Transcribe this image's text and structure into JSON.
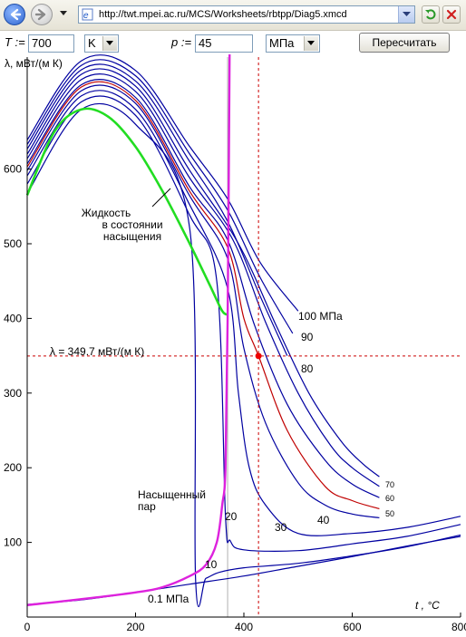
{
  "browser": {
    "url": "http://twt.mpei.ac.ru/MCS/Worksheets/rbtpp/Diag5.xmcd"
  },
  "form": {
    "t_label": "T :=",
    "t_value": "700",
    "t_unit": "K",
    "p_label": "p :=",
    "p_value": "45",
    "p_unit": "МПа",
    "recalc_label": "Пересчитать"
  },
  "chart_data": {
    "type": "line",
    "ylabel": "λ, мВт/(м К)",
    "xlabel": "t , °C",
    "xlim": [
      0,
      800
    ],
    "ylim": [
      0,
      750
    ],
    "x_ticks": [
      0,
      200,
      400,
      600,
      800
    ],
    "y_ticks": [
      100,
      200,
      300,
      400,
      500,
      600
    ],
    "grid": false,
    "colors": {
      "isobar": "#0000a0",
      "selected_isobar": "#c00000",
      "saturated_liquid": "#22dd22",
      "saturated_vapor": "#dd22dd",
      "marker": "#ee0000",
      "crosshair": "#cc0000"
    },
    "result_label": "λ = 349.7 мВт/(м К)",
    "result_point": {
      "t": 427,
      "lambda": 349.7
    },
    "saturation_temperature_line": 370,
    "annotations": {
      "liquid": [
        "Жидкость",
        "в состоянии",
        "насыщения"
      ],
      "vapor": [
        "Насыщенный",
        "пар"
      ]
    },
    "series": [
      {
        "name": "0.1 МПа",
        "x": [
          0,
          100,
          200,
          300,
          400,
          500,
          600,
          700,
          800
        ],
        "y": [
          17,
          23,
          33,
          44,
          55,
          68,
          81,
          95,
          108
        ]
      },
      {
        "name": "10",
        "x": [
          0,
          100,
          200,
          300,
          311,
          330,
          355,
          400,
          500,
          600,
          700,
          800
        ],
        "y": [
          567,
          680,
          660,
          520,
          48,
          52,
          60,
          66,
          72,
          82,
          94,
          110
        ]
      },
      {
        "name": "20",
        "x": [
          0,
          100,
          200,
          300,
          350,
          366,
          375,
          400,
          500,
          600,
          700,
          800
        ],
        "y": [
          580,
          690,
          672,
          538,
          450,
          135,
          102,
          90,
          89,
          98,
          108,
          124
        ]
      },
      {
        "name": "30",
        "x": [
          0,
          100,
          200,
          300,
          370,
          390,
          410,
          440,
          500,
          600,
          700,
          800
        ],
        "y": [
          591,
          698,
          680,
          552,
          440,
          300,
          200,
          150,
          112,
          112,
          120,
          135
        ]
      },
      {
        "name": "40",
        "x": [
          0,
          100,
          200,
          300,
          370,
          400,
          440,
          500,
          550,
          600,
          650
        ],
        "y": [
          598,
          705,
          688,
          564,
          480,
          360,
          260,
          180,
          150,
          138,
          133
        ]
      },
      {
        "name": "45",
        "x": [
          0,
          100,
          200,
          300,
          370,
          400,
          427,
          480,
          550,
          600,
          650
        ],
        "y": [
          603,
          710,
          692,
          570,
          495,
          400,
          350,
          250,
          175,
          156,
          145
        ]
      },
      {
        "name": "50",
        "x": [
          0,
          100,
          200,
          300,
          370,
          420,
          480,
          550,
          600,
          650
        ],
        "y": [
          607,
          713,
          696,
          576,
          505,
          390,
          285,
          210,
          178,
          160
        ]
      },
      {
        "name": "60",
        "x": [
          0,
          100,
          200,
          300,
          380,
          440,
          500,
          560,
          600,
          650
        ],
        "y": [
          614,
          720,
          704,
          588,
          505,
          395,
          300,
          230,
          200,
          175
        ]
      },
      {
        "name": "70",
        "x": [
          0,
          100,
          200,
          300,
          390,
          460,
          520,
          580,
          620,
          650
        ],
        "y": [
          620,
          727,
          711,
          598,
          500,
          390,
          300,
          235,
          205,
          188
        ]
      },
      {
        "name": "80",
        "x": [
          0,
          100,
          200,
          300,
          370,
          430,
          480
        ],
        "y": [
          627,
          733,
          718,
          610,
          530,
          430,
          350
        ]
      },
      {
        "name": "90",
        "x": [
          0,
          100,
          200,
          300,
          370,
          430,
          490
        ],
        "y": [
          633,
          739,
          725,
          620,
          545,
          455,
          380
        ]
      },
      {
        "name": "100 МПа",
        "x": [
          0,
          100,
          200,
          300,
          370,
          430,
          500
        ],
        "y": [
          639,
          745,
          732,
          630,
          560,
          475,
          410
        ]
      },
      {
        "name": "Жидкость в состоянии насыщения",
        "x": [
          0,
          50,
          100,
          150,
          200,
          250,
          300,
          340,
          360,
          370
        ],
        "y": [
          565,
          650,
          680,
          670,
          630,
          570,
          500,
          440,
          410,
          405
        ]
      },
      {
        "name": "Насыщенный пар",
        "x": [
          0,
          100,
          200,
          250,
          300,
          330,
          350,
          360,
          366,
          370,
          374
        ],
        "y": [
          16,
          24,
          33,
          40,
          55,
          70,
          100,
          150,
          200,
          400,
          800
        ]
      }
    ],
    "series_labels": [
      "100 МПа",
      "90",
      "80",
      "70",
      "60",
      "50",
      "40",
      "30",
      "20",
      "10",
      "0.1 МПа"
    ]
  }
}
